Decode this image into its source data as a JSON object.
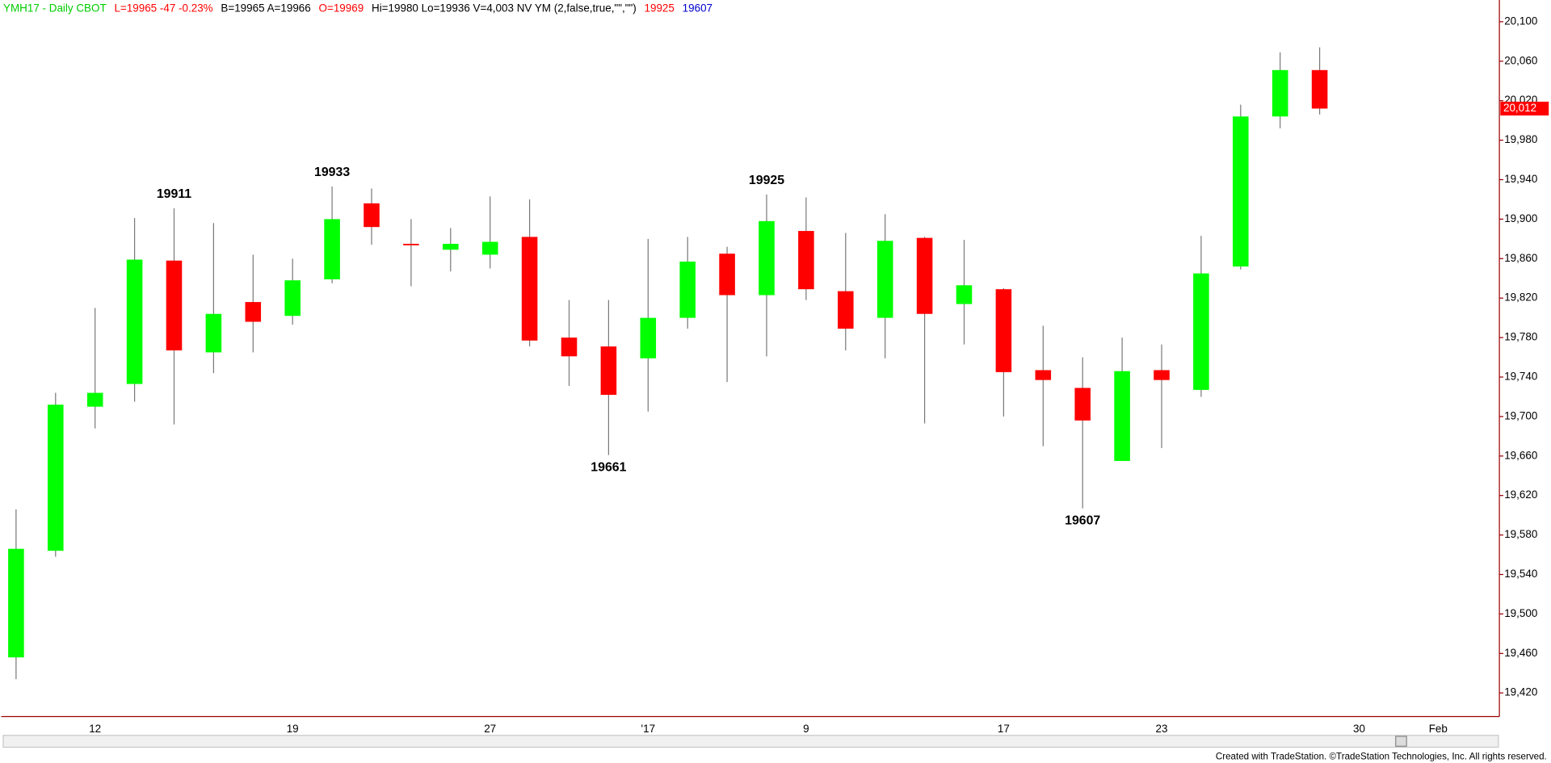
{
  "chart_data": {
    "type": "candlestick",
    "header": [
      {
        "text": "YMH17 - Daily  CBOT",
        "color": "#00cc00"
      },
      {
        "text": "L=19965  -47  -0.23%",
        "color": "#ff0000"
      },
      {
        "text": "B=19965  A=19966",
        "color": "#000000"
      },
      {
        "text": "O=19969",
        "color": "#ff0000"
      },
      {
        "text": "Hi=19980  Lo=19936  V=4,003  NV YM (2,false,true,\"\",\"\")",
        "color": "#000000"
      },
      {
        "text": "19925",
        "color": "#ff0000"
      },
      {
        "text": "19607",
        "color": "#0000cc"
      }
    ],
    "categories": [
      null,
      null,
      "12",
      null,
      null,
      null,
      null,
      "19",
      null,
      null,
      null,
      null,
      "27",
      null,
      null,
      null,
      "'17",
      null,
      null,
      null,
      "9",
      null,
      null,
      null,
      null,
      "17",
      null,
      null,
      null,
      "23",
      null,
      null,
      null,
      null,
      "30",
      null,
      "Feb",
      null
    ],
    "open": [
      19456,
      19564,
      19710,
      19733,
      19858,
      19765,
      19816,
      19802,
      19839,
      19916,
      19875,
      19869,
      19864,
      19882,
      19780,
      19771,
      19759,
      19800,
      19865,
      19823,
      19888,
      19827,
      19800,
      19881,
      19814,
      19829,
      19747,
      19729,
      19655,
      19747,
      19727,
      19852,
      20004,
      20051,
      null,
      null,
      null,
      null
    ],
    "high": [
      19606,
      19724,
      19810,
      19901,
      19911,
      19896,
      19864,
      19860,
      19933,
      19931,
      19900,
      19891,
      19923,
      19920,
      19818,
      19818,
      19880,
      19882,
      19872,
      19925,
      19922,
      19886,
      19905,
      19882,
      19879,
      19830,
      19792,
      19760,
      19780,
      19773,
      19883,
      20016,
      20069,
      20074,
      null,
      null,
      null,
      null
    ],
    "low": [
      19434,
      19558,
      19688,
      19715,
      19692,
      19744,
      19765,
      19793,
      19835,
      19874,
      19832,
      19847,
      19850,
      19771,
      19731,
      19661,
      19705,
      19789,
      19735,
      19761,
      19818,
      19767,
      19759,
      19693,
      19773,
      19700,
      19670,
      19607,
      19655,
      19668,
      19720,
      19849,
      19992,
      20006,
      null,
      null,
      null,
      null
    ],
    "close": [
      19566,
      19712,
      19724,
      19859,
      19767,
      19804,
      19796,
      19838,
      19900,
      19892,
      19874,
      19875,
      19877,
      19777,
      19761,
      19722,
      19800,
      19857,
      19823,
      19898,
      19829,
      19789,
      19878,
      19804,
      19833,
      19745,
      19737,
      19696,
      19746,
      19737,
      19845,
      20004,
      20051,
      20012,
      null,
      null,
      null,
      null
    ],
    "high_labels": [
      null,
      null,
      null,
      null,
      "19911",
      null,
      null,
      null,
      "19933",
      null,
      null,
      null,
      null,
      null,
      null,
      null,
      null,
      null,
      null,
      "19925",
      null,
      null,
      null,
      null,
      null,
      null,
      null,
      null,
      null,
      null,
      null,
      null,
      null,
      null,
      null,
      null,
      null,
      null
    ],
    "low_labels": [
      null,
      null,
      null,
      null,
      null,
      null,
      null,
      null,
      null,
      null,
      null,
      null,
      null,
      null,
      null,
      "19661",
      null,
      null,
      null,
      null,
      null,
      null,
      null,
      null,
      null,
      null,
      null,
      "19607",
      null,
      null,
      null,
      null,
      null,
      null,
      null,
      null,
      null,
      null
    ],
    "up_color": "#00ff00",
    "down_color": "#ff0000",
    "ylim": [
      19396,
      20122
    ],
    "yticks": [
      {
        "value": 19420,
        "label": "19,420"
      },
      {
        "value": 19460,
        "label": "19,460"
      },
      {
        "value": 19500,
        "label": "19,500"
      },
      {
        "value": 19540,
        "label": "19,540"
      },
      {
        "value": 19580,
        "label": "19,580"
      },
      {
        "value": 19620,
        "label": "19,620"
      },
      {
        "value": 19660,
        "label": "19,660"
      },
      {
        "value": 19700,
        "label": "19,700"
      },
      {
        "value": 19740,
        "label": "19,740"
      },
      {
        "value": 19780,
        "label": "19,780"
      },
      {
        "value": 19820,
        "label": "19,820"
      },
      {
        "value": 19860,
        "label": "19,860"
      },
      {
        "value": 19900,
        "label": "19,900"
      },
      {
        "value": 19940,
        "label": "19,940"
      },
      {
        "value": 19980,
        "label": "19,980"
      },
      {
        "value": 20020,
        "label": "20,020"
      },
      {
        "value": 20060,
        "label": "20,060"
      },
      {
        "value": 20100,
        "label": "20,100"
      }
    ],
    "last_price": {
      "value": 20012,
      "label": "20,012"
    },
    "axis_color": "#990000",
    "grid": false
  },
  "footer": "Created with TradeStation. ©TradeStation Technologies, Inc. All rights reserved."
}
